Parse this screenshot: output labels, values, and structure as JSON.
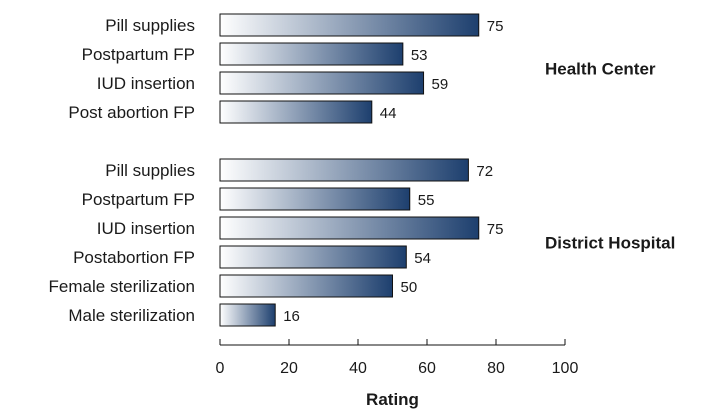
{
  "chart_data": {
    "type": "bar",
    "orientation": "horizontal",
    "xlabel": "Rating",
    "xlim": [
      0,
      100
    ],
    "xticks": [
      0,
      20,
      40,
      60,
      80,
      100
    ],
    "grid": false,
    "bar_gradient": [
      "#ffffff",
      "#1d3f6e"
    ],
    "groups": [
      {
        "name": "Health Center",
        "categories": [
          "Pill supplies",
          "Postpartum FP",
          "IUD insertion",
          "Post abortion FP"
        ],
        "values": [
          75,
          53,
          59,
          44
        ]
      },
      {
        "name": "District Hospital",
        "categories": [
          "Pill supplies",
          "Postpartum FP",
          "IUD insertion",
          "Postabortion FP",
          "Female sterilization",
          "Male sterilization"
        ],
        "values": [
          72,
          55,
          75,
          54,
          50,
          16
        ]
      }
    ]
  }
}
